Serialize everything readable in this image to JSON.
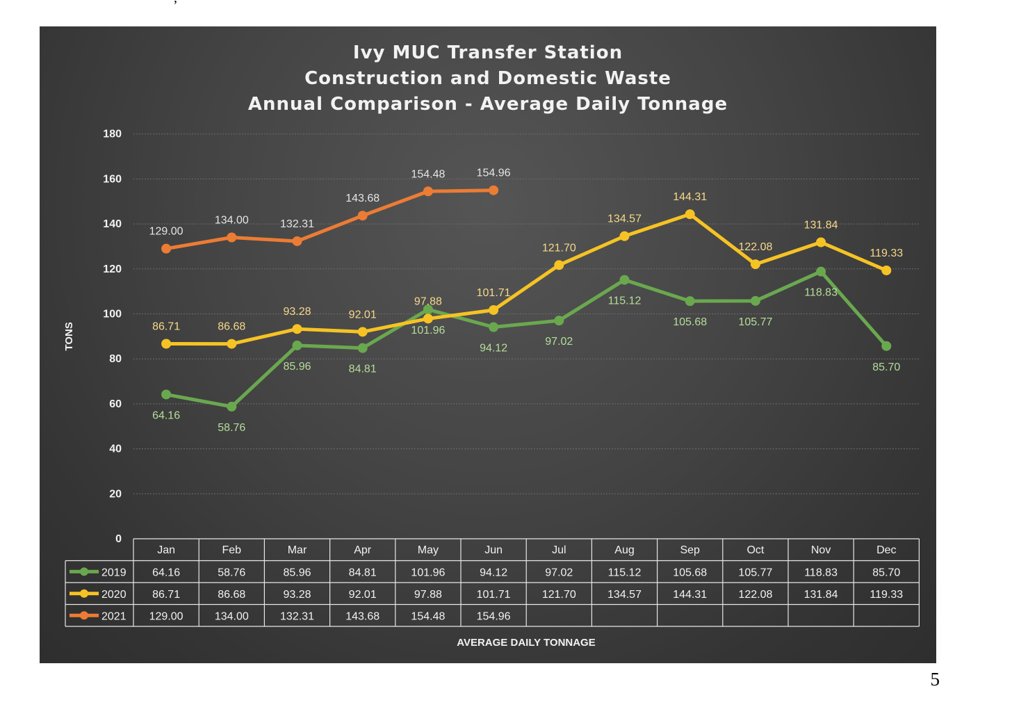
{
  "page": {
    "page_number": "5"
  },
  "chart_data": {
    "type": "line",
    "title": [
      "Ivy MUC Transfer Station",
      "Construction and Domestic Waste",
      "Annual Comparison - Average Daily Tonnage"
    ],
    "xlabel": "AVERAGE DAILY TONNAGE",
    "ylabel": "TONS",
    "ylim": [
      0,
      180
    ],
    "yticks": [
      0,
      20,
      40,
      60,
      80,
      100,
      120,
      140,
      160,
      180
    ],
    "grid": true,
    "legend": "data table",
    "categories": [
      "Jan",
      "Feb",
      "Mar",
      "Apr",
      "May",
      "Jun",
      "Jul",
      "Aug",
      "Sep",
      "Oct",
      "Nov",
      "Dec"
    ],
    "series": [
      {
        "name": "2019",
        "color": "#6aa84f",
        "label_color": "#b6dd9a",
        "values": [
          64.16,
          58.76,
          85.96,
          84.81,
          101.96,
          94.12,
          97.02,
          115.12,
          105.68,
          105.77,
          118.83,
          85.7
        ],
        "labels": [
          "64.16",
          "58.76",
          "85.96",
          "84.81",
          "101.96",
          "94.12",
          "97.02",
          "115.12",
          "105.68",
          "105.77",
          "118.83",
          "85.70"
        ]
      },
      {
        "name": "2020",
        "color": "#f6c324",
        "label_color": "#f7d98a",
        "values": [
          86.71,
          86.68,
          93.28,
          92.01,
          97.88,
          101.71,
          121.7,
          134.57,
          144.31,
          122.08,
          131.84,
          119.33
        ],
        "labels": [
          "86.71",
          "86.68",
          "93.28",
          "92.01",
          "97.88",
          "101.71",
          "121.70",
          "134.57",
          "144.31",
          "122.08",
          "131.84",
          "119.33"
        ]
      },
      {
        "name": "2021",
        "color": "#ec7c34",
        "label_color": "#e5e5e5",
        "values": [
          129.0,
          134.0,
          132.31,
          143.68,
          154.48,
          154.96,
          null,
          null,
          null,
          null,
          null,
          null
        ],
        "labels": [
          "129.00",
          "134.00",
          "132.31",
          "143.68",
          "154.48",
          "154.96",
          "",
          "",
          "",
          "",
          "",
          ""
        ]
      }
    ]
  }
}
